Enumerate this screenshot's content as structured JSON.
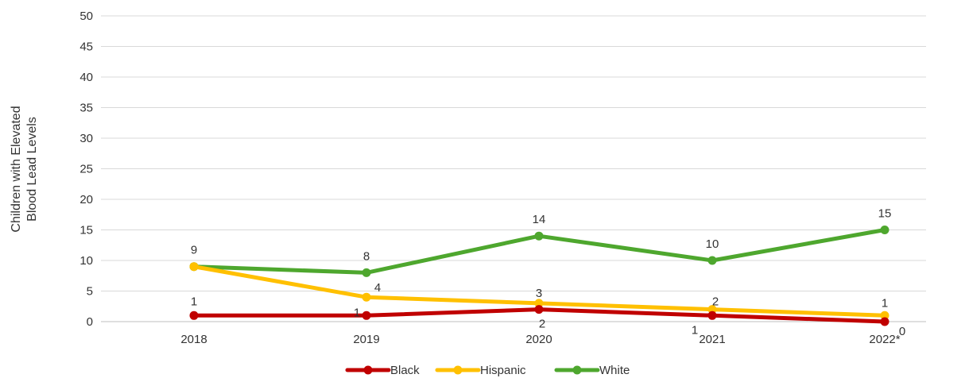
{
  "chart_data": {
    "type": "line",
    "title": "",
    "xlabel": "",
    "ylabel": [
      "Children with Elevated",
      "Blood Lead Levels"
    ],
    "categories": [
      "2018",
      "2019",
      "2020",
      "2021",
      "2022*"
    ],
    "ylim": [
      0,
      50
    ],
    "yticks": [
      0,
      5,
      10,
      15,
      20,
      25,
      30,
      35,
      40,
      45,
      50
    ],
    "grid": true,
    "legend_position": "bottom",
    "series": [
      {
        "name": "Black",
        "values": [
          1,
          1,
          2,
          1,
          0
        ],
        "color": "#c00000"
      },
      {
        "name": "Hispanic",
        "values": [
          9,
          4,
          3,
          2,
          1
        ],
        "color": "#ffc000"
      },
      {
        "name": "White",
        "values": [
          9,
          8,
          14,
          10,
          15
        ],
        "color": "#4ea72e"
      }
    ]
  }
}
